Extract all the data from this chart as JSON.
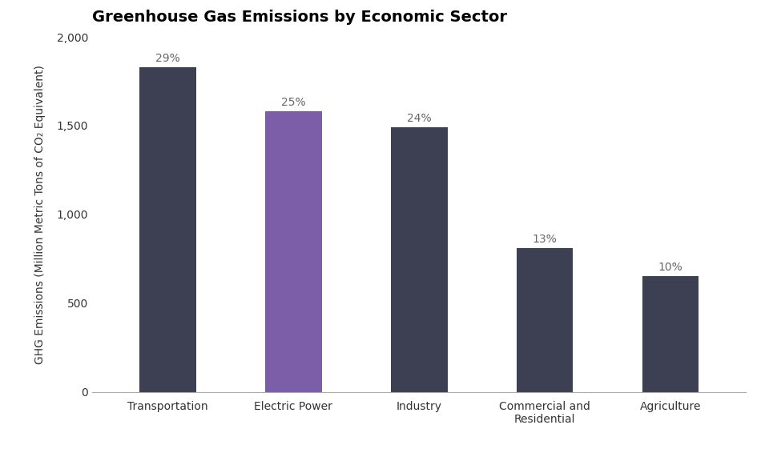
{
  "title": "Greenhouse Gas Emissions by Economic Sector",
  "categories": [
    "Transportation",
    "Electric Power",
    "Industry",
    "Commercial and\nResidential",
    "Agriculture"
  ],
  "values": [
    1830,
    1580,
    1490,
    810,
    650
  ],
  "percentages": [
    "29%",
    "25%",
    "24%",
    "13%",
    "10%"
  ],
  "bar_colors": [
    "#3d3f52",
    "#7b5ea7",
    "#3d3f52",
    "#3d3f52",
    "#3d3f52"
  ],
  "ylabel": "GHG Emissions (Million Metric Tons of CO₂ Equivalent)",
  "ylim": [
    0,
    2000
  ],
  "yticks": [
    0,
    500,
    1000,
    1500,
    2000
  ],
  "background_color": "#ffffff",
  "title_fontsize": 14,
  "label_fontsize": 10,
  "tick_fontsize": 10,
  "pct_fontsize": 10,
  "bar_width": 0.45
}
